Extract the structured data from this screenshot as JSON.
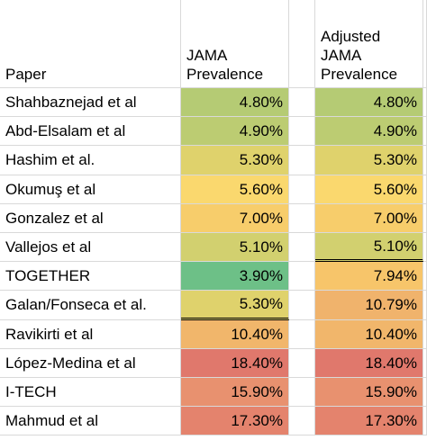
{
  "headers": {
    "paper": "Paper",
    "jama": "JAMA\nPrevalence",
    "adjusted": "Adjusted\nJAMA\nPrevalence"
  },
  "rows": [
    {
      "paper": "Shahbaznejad et al",
      "jama": "4.80%",
      "jama_color": "#b5cb74",
      "adj": "4.80%",
      "adj_color": "#b5cb74"
    },
    {
      "paper": "Abd-Elsalam et al",
      "jama": "4.90%",
      "jama_color": "#bccc72",
      "adj": "4.90%",
      "adj_color": "#bccc72"
    },
    {
      "paper": "Hashim et al.",
      "jama": "5.30%",
      "jama_color": "#dfd26c",
      "adj": "5.30%",
      "adj_color": "#dfd26c"
    },
    {
      "paper": "Okumuş et al",
      "jama": "5.60%",
      "jama_color": "#fad86e",
      "adj": "5.60%",
      "adj_color": "#fad86e"
    },
    {
      "paper": "Gonzalez et al",
      "jama": "7.00%",
      "jama_color": "#f7cd6b",
      "adj": "7.00%",
      "adj_color": "#f7cd6b"
    },
    {
      "paper": "Vallejos et al",
      "jama": "5.10%",
      "jama_color": "#d2d06f",
      "adj": "5.10%",
      "adj_color": "#d2d06f"
    },
    {
      "paper": "TOGETHER",
      "jama": "3.90%",
      "jama_color": "#6dc087",
      "adj": "7.94%",
      "adj_color": "#f7c56a"
    },
    {
      "paper": "Galan/Fonseca et al.",
      "jama": "5.30%",
      "jama_color": "#dfd26c",
      "adj": "10.79%",
      "adj_color": "#f0b36c"
    },
    {
      "paper": "Ravikirti et al",
      "jama": "10.40%",
      "jama_color": "#f1b66b",
      "adj": "10.40%",
      "adj_color": "#f1b66b"
    },
    {
      "paper": "López-Medina et al",
      "jama": "18.40%",
      "jama_color": "#e0786c",
      "adj": "18.40%",
      "adj_color": "#e0786c"
    },
    {
      "paper": "I-TECH",
      "jama": "15.90%",
      "jama_color": "#e8916f",
      "adj": "15.90%",
      "adj_color": "#e8916f"
    },
    {
      "paper": "Mahmud et al",
      "jama": "17.30%",
      "jama_color": "#e4836d",
      "adj": "17.30%",
      "adj_color": "#e4836d"
    }
  ]
}
